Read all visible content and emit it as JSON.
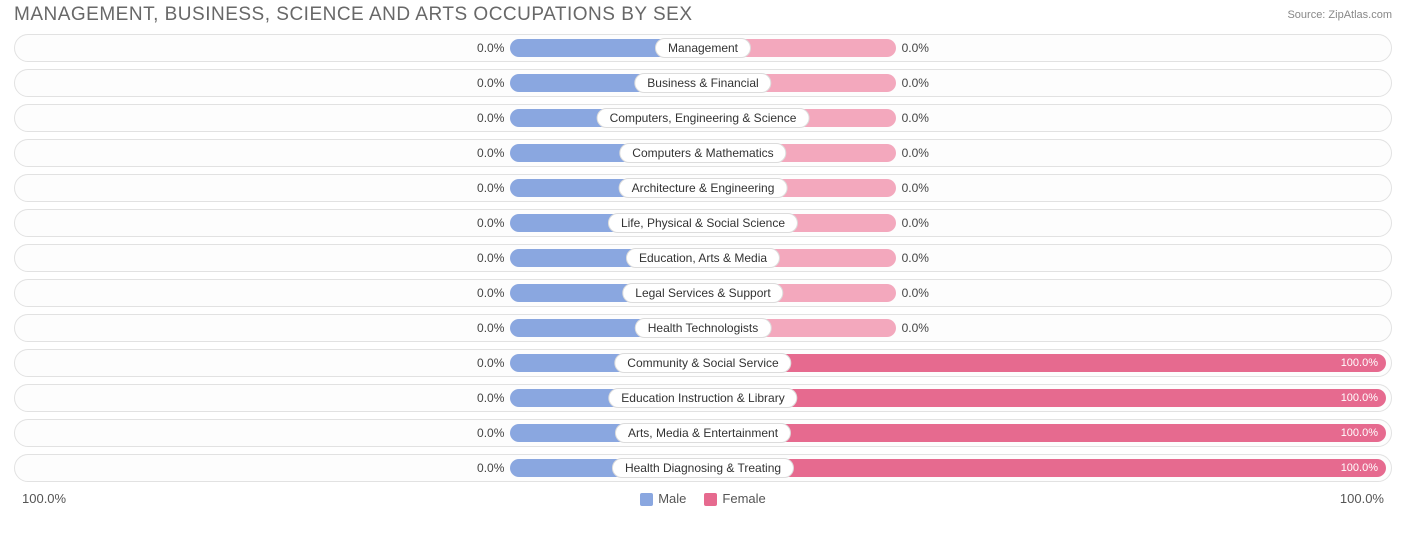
{
  "title": "MANAGEMENT, BUSINESS, SCIENCE AND ARTS OCCUPATIONS BY SEX",
  "source": "Source: ZipAtlas.com",
  "axis": {
    "left_label": "100.0%",
    "right_label": "100.0%"
  },
  "legend": {
    "male": {
      "label": "Male",
      "color": "#8aa7e0"
    },
    "female": {
      "label": "Female",
      "color": "#e66a8f"
    }
  },
  "colors": {
    "male_bar": "#8aa7e0",
    "female_bar_zero": "#f3a8bd",
    "female_bar_full": "#e66a8f",
    "track_bg": "#fdfdfd",
    "track_border": "#e2e2e2",
    "pill_bg": "#ffffff",
    "pill_border": "#dcdcdc",
    "text": "#444444"
  },
  "chart": {
    "type": "diverging-bar",
    "half_width_pct": 50,
    "zero_bar_pct_of_half": 28,
    "rows": [
      {
        "category": "Management",
        "male_pct": 0.0,
        "female_pct": 0.0,
        "male_label": "0.0%",
        "female_label": "0.0%"
      },
      {
        "category": "Business & Financial",
        "male_pct": 0.0,
        "female_pct": 0.0,
        "male_label": "0.0%",
        "female_label": "0.0%"
      },
      {
        "category": "Computers, Engineering & Science",
        "male_pct": 0.0,
        "female_pct": 0.0,
        "male_label": "0.0%",
        "female_label": "0.0%"
      },
      {
        "category": "Computers & Mathematics",
        "male_pct": 0.0,
        "female_pct": 0.0,
        "male_label": "0.0%",
        "female_label": "0.0%"
      },
      {
        "category": "Architecture & Engineering",
        "male_pct": 0.0,
        "female_pct": 0.0,
        "male_label": "0.0%",
        "female_label": "0.0%"
      },
      {
        "category": "Life, Physical & Social Science",
        "male_pct": 0.0,
        "female_pct": 0.0,
        "male_label": "0.0%",
        "female_label": "0.0%"
      },
      {
        "category": "Education, Arts & Media",
        "male_pct": 0.0,
        "female_pct": 0.0,
        "male_label": "0.0%",
        "female_label": "0.0%"
      },
      {
        "category": "Legal Services & Support",
        "male_pct": 0.0,
        "female_pct": 0.0,
        "male_label": "0.0%",
        "female_label": "0.0%"
      },
      {
        "category": "Health Technologists",
        "male_pct": 0.0,
        "female_pct": 0.0,
        "male_label": "0.0%",
        "female_label": "0.0%"
      },
      {
        "category": "Community & Social Service",
        "male_pct": 0.0,
        "female_pct": 100.0,
        "male_label": "0.0%",
        "female_label": "100.0%"
      },
      {
        "category": "Education Instruction & Library",
        "male_pct": 0.0,
        "female_pct": 100.0,
        "male_label": "0.0%",
        "female_label": "100.0%"
      },
      {
        "category": "Arts, Media & Entertainment",
        "male_pct": 0.0,
        "female_pct": 100.0,
        "male_label": "0.0%",
        "female_label": "100.0%"
      },
      {
        "category": "Health Diagnosing & Treating",
        "male_pct": 0.0,
        "female_pct": 100.0,
        "male_label": "0.0%",
        "female_label": "100.0%"
      }
    ]
  }
}
